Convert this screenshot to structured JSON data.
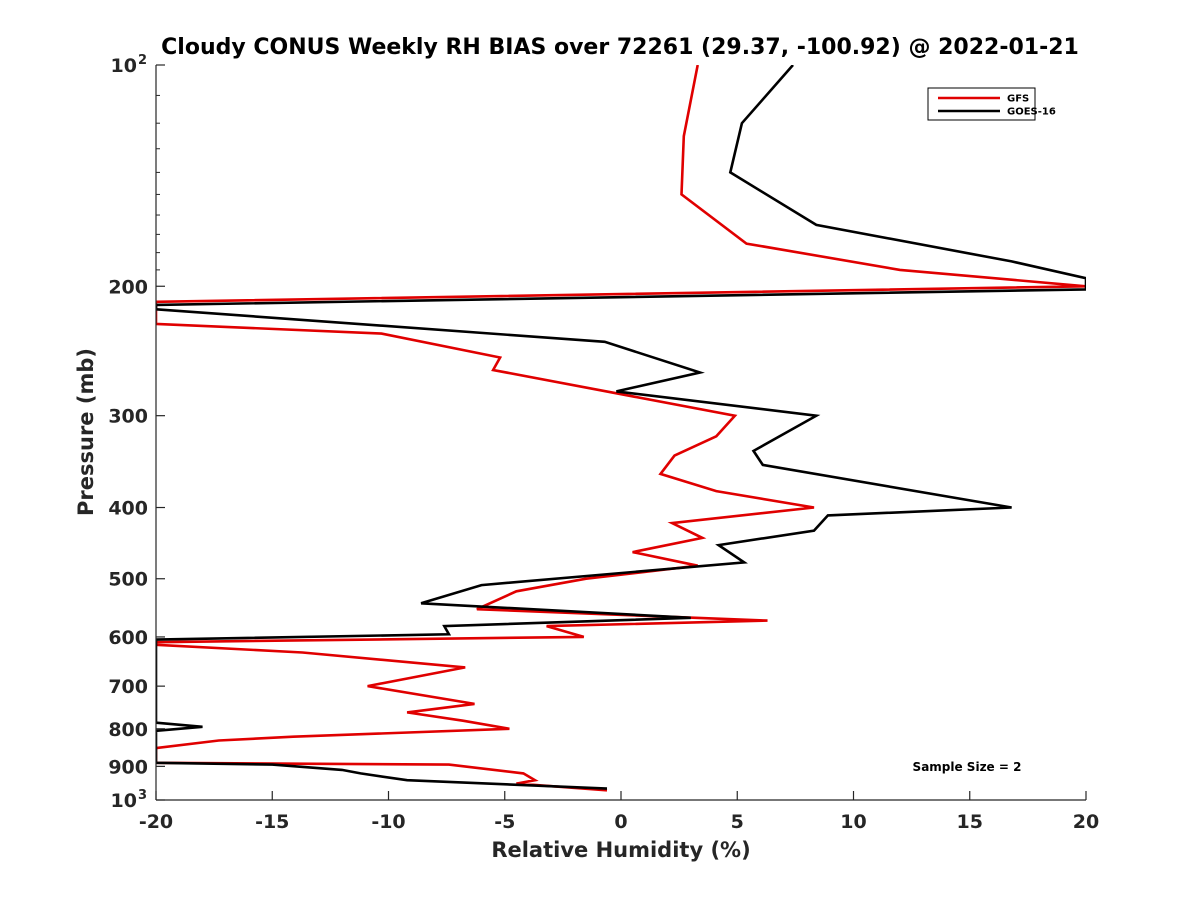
{
  "chart_data": {
    "type": "line",
    "title": "Cloudy CONUS Weekly RH BIAS over 72261 (29.37, -100.92) @ 2022-01-21",
    "xlabel": "Relative Humidity (%)",
    "ylabel": "Pressure (mb)",
    "xlim": [
      -20,
      20
    ],
    "ylim": [
      100,
      1000
    ],
    "y_scale": "log",
    "y_reversed": true,
    "x_ticks": [
      "-20",
      "-15",
      "-10",
      "-5",
      "0",
      "5",
      "10",
      "15",
      "20"
    ],
    "y_ticks": [
      {
        "value": 100,
        "label": "10",
        "sup": "2"
      },
      {
        "value": 200,
        "label": "200",
        "sup": ""
      },
      {
        "value": 300,
        "label": "300",
        "sup": ""
      },
      {
        "value": 400,
        "label": "400",
        "sup": ""
      },
      {
        "value": 500,
        "label": "500",
        "sup": ""
      },
      {
        "value": 600,
        "label": "600",
        "sup": ""
      },
      {
        "value": 700,
        "label": "700",
        "sup": ""
      },
      {
        "value": 800,
        "label": "800",
        "sup": ""
      },
      {
        "value": 900,
        "label": "900",
        "sup": ""
      },
      {
        "value": 1000,
        "label": "10",
        "sup": "3"
      }
    ],
    "grid": false,
    "legend_position": "top-right",
    "annotation": "Sample Size = 2",
    "series": [
      {
        "name": "GFS",
        "color": "#e00000",
        "points": [
          [
            3.3,
            100
          ],
          [
            2.7,
            125
          ],
          [
            2.6,
            150
          ],
          [
            5.4,
            175
          ],
          [
            12,
            190
          ],
          [
            20,
            200
          ],
          [
            -20,
            210
          ],
          [
            -20,
            225
          ],
          [
            -10.3,
            232
          ],
          [
            -5.2,
            250
          ],
          [
            -5.5,
            260
          ],
          [
            4.9,
            300
          ],
          [
            4.1,
            320
          ],
          [
            2.3,
            340
          ],
          [
            1.7,
            360
          ],
          [
            4.1,
            380
          ],
          [
            8.3,
            400
          ],
          [
            2.2,
            420
          ],
          [
            3.5,
            440
          ],
          [
            0.5,
            460
          ],
          [
            3.3,
            480
          ],
          [
            -1.5,
            500
          ],
          [
            -4.5,
            520
          ],
          [
            -6.2,
            550
          ],
          [
            6.3,
            570
          ],
          [
            -3.2,
            580
          ],
          [
            -1.6,
            600
          ],
          [
            -20,
            610
          ],
          [
            -20,
            615
          ],
          [
            -13.7,
            630
          ],
          [
            -6.7,
            660
          ],
          [
            -10.9,
            700
          ],
          [
            -6.3,
            740
          ],
          [
            -9.2,
            760
          ],
          [
            -6.8,
            780
          ],
          [
            -4.8,
            800
          ],
          [
            -14.1,
            820
          ],
          [
            -17.3,
            830
          ],
          [
            -20,
            850
          ],
          [
            -20,
            890
          ],
          [
            -7.4,
            895
          ],
          [
            -4.2,
            920
          ],
          [
            -3.7,
            940
          ],
          [
            -4.5,
            950
          ],
          [
            -0.6,
            970
          ]
        ]
      },
      {
        "name": "GOES-16",
        "color": "#000000",
        "points": [
          [
            7.4,
            100
          ],
          [
            5.2,
            120
          ],
          [
            4.7,
            140
          ],
          [
            8.4,
            165
          ],
          [
            16.8,
            185
          ],
          [
            20,
            195
          ],
          [
            20,
            202
          ],
          [
            -20,
            212
          ],
          [
            -20,
            215
          ],
          [
            -0.7,
            238
          ],
          [
            3.4,
            262
          ],
          [
            -0.2,
            278
          ],
          [
            8.4,
            300
          ],
          [
            5.7,
            335
          ],
          [
            6.1,
            350
          ],
          [
            16.8,
            400
          ],
          [
            8.9,
            410
          ],
          [
            8.3,
            430
          ],
          [
            4.2,
            450
          ],
          [
            5.3,
            475
          ],
          [
            -6,
            510
          ],
          [
            -8.6,
            540
          ],
          [
            3,
            565
          ],
          [
            -7.6,
            580
          ],
          [
            -7.4,
            595
          ],
          [
            -20,
            605
          ],
          [
            -20,
            785
          ],
          [
            -18,
            795
          ],
          [
            -20,
            805
          ],
          [
            -20,
            890
          ],
          [
            -15,
            895
          ],
          [
            -12,
            910
          ],
          [
            -11.2,
            920
          ],
          [
            -9.2,
            940
          ],
          [
            -0.6,
            965
          ]
        ]
      }
    ]
  }
}
